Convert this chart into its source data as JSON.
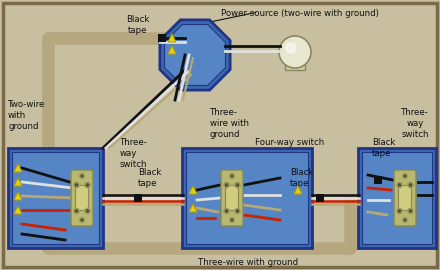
{
  "bg_color": "#c8bfa0",
  "border_color": "#8a7a5a",
  "wire_black": "#111111",
  "wire_red": "#cc2200",
  "wire_white": "#e0e0e0",
  "wire_tan": "#b8a878",
  "wire_ground": "#888844",
  "box_blue": "#3a6aaa",
  "box_blue2": "#5585c5",
  "switch_face": "#d0cc80",
  "labels": {
    "power_source": "Power source (two-wire with ground)",
    "two_wire": "Two-wire\nwith\nground",
    "three_way_left": "Three-\nway\nswitch",
    "three_wire_mid": "Three-\nwire with\nground",
    "four_way": "Four-way switch",
    "three_way_right": "Three-\nway\nswitch",
    "three_wire_bottom": "Three-wire with ground",
    "black_tape_top": "Black\ntape",
    "black_tape_left": "Black\ntape",
    "black_tape_mid": "Black\ntape",
    "black_tape_right": "Black\ntape"
  },
  "figsize": [
    4.4,
    2.7
  ],
  "dpi": 100
}
